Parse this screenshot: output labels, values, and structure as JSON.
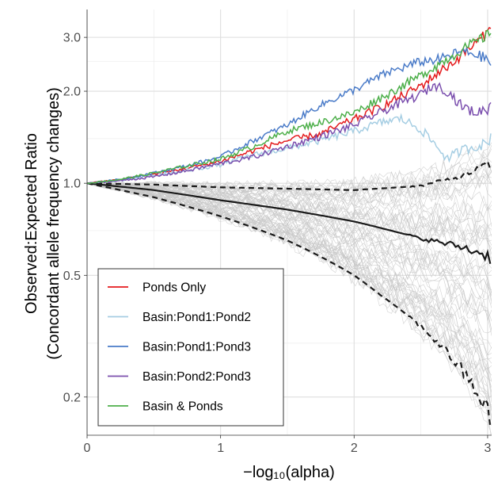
{
  "chart_data": {
    "type": "line",
    "xlabel": "−log₁₀(alpha)",
    "ylabel": [
      "Observed:Expected Ratio",
      "(Concordant allele frequency changes)"
    ],
    "y_scale": "log",
    "xlim": [
      0,
      3.03
    ],
    "ylim": [
      0.15,
      3.7
    ],
    "x_ticks": [
      0,
      1,
      2,
      3
    ],
    "x_tick_labels": [
      "0",
      "1",
      "2",
      "3"
    ],
    "y_ticks": [
      0.2,
      0.5,
      1.0,
      2.0,
      3.0
    ],
    "y_tick_labels": [
      "0.2",
      "0.5",
      "1.0",
      "2.0",
      "3.0"
    ],
    "y_minor_ticks": [
      0.3,
      0.7,
      1.4,
      2.5
    ],
    "x_minor_ticks": [
      0.5,
      1.5,
      2.5
    ],
    "grid": true,
    "legend_position": "bottom-left",
    "series": [
      {
        "name": "Ponds Only",
        "color": "#e41a1c",
        "x": [
          0,
          0.25,
          0.5,
          0.75,
          1.0,
          1.25,
          1.5,
          1.75,
          2.0,
          2.25,
          2.5,
          2.75,
          2.9,
          3.0,
          3.03
        ],
        "y": [
          1.0,
          1.03,
          1.07,
          1.12,
          1.18,
          1.28,
          1.38,
          1.45,
          1.62,
          1.82,
          2.08,
          2.5,
          2.85,
          3.1,
          3.4
        ]
      },
      {
        "name": "Basin:Pond1:Pond2",
        "color": "#a6cee3",
        "x": [
          0,
          0.25,
          0.5,
          0.75,
          1.0,
          1.25,
          1.5,
          1.75,
          2.0,
          2.2,
          2.35,
          2.5,
          2.6,
          2.7,
          2.8,
          2.9,
          3.0,
          3.03
        ],
        "y": [
          1.0,
          1.02,
          1.06,
          1.1,
          1.15,
          1.24,
          1.3,
          1.38,
          1.48,
          1.58,
          1.63,
          1.5,
          1.35,
          1.2,
          1.28,
          1.32,
          1.35,
          1.45
        ]
      },
      {
        "name": "Basin:Pond1:Pond3",
        "color": "#4a7bc8",
        "x": [
          0,
          0.25,
          0.5,
          0.75,
          1.0,
          1.25,
          1.5,
          1.75,
          2.0,
          2.25,
          2.5,
          2.65,
          2.8,
          2.9,
          3.0,
          3.03
        ],
        "y": [
          1.0,
          1.03,
          1.08,
          1.14,
          1.22,
          1.38,
          1.55,
          1.8,
          2.02,
          2.3,
          2.5,
          2.55,
          2.7,
          2.65,
          2.55,
          2.4
        ]
      },
      {
        "name": "Basin:Pond2:Pond3",
        "color": "#7b4fae",
        "x": [
          0,
          0.25,
          0.5,
          0.75,
          1.0,
          1.25,
          1.5,
          1.75,
          2.0,
          2.25,
          2.5,
          2.6,
          2.7,
          2.8,
          2.9,
          3.0,
          3.03
        ],
        "y": [
          1.0,
          1.02,
          1.05,
          1.1,
          1.16,
          1.22,
          1.32,
          1.42,
          1.55,
          1.75,
          1.95,
          2.1,
          2.0,
          1.8,
          1.7,
          1.75,
          1.82
        ]
      },
      {
        "name": "Basin & Ponds",
        "color": "#4daf4a",
        "x": [
          0,
          0.25,
          0.5,
          0.75,
          1.0,
          1.25,
          1.5,
          1.75,
          2.0,
          2.25,
          2.5,
          2.7,
          2.85,
          3.0,
          3.03
        ],
        "y": [
          1.0,
          1.03,
          1.08,
          1.14,
          1.2,
          1.32,
          1.48,
          1.58,
          1.7,
          1.95,
          2.25,
          2.55,
          2.8,
          3.05,
          3.15
        ]
      }
    ],
    "null_median": {
      "x": [
        0,
        0.5,
        1.0,
        1.5,
        2.0,
        2.5,
        2.8,
        3.0,
        3.03
      ],
      "y": [
        1.0,
        0.95,
        0.88,
        0.82,
        0.75,
        0.66,
        0.62,
        0.58,
        0.56
      ]
    },
    "null_upper": {
      "x": [
        0,
        0.5,
        1.0,
        1.5,
        2.0,
        2.5,
        2.8,
        3.0,
        3.03
      ],
      "y": [
        1.0,
        0.99,
        0.97,
        0.96,
        0.95,
        0.98,
        1.05,
        1.15,
        1.12
      ]
    },
    "null_lower": {
      "x": [
        0,
        0.5,
        1.0,
        1.5,
        2.0,
        2.2,
        2.5,
        2.7,
        2.85,
        3.0,
        3.03
      ],
      "y": [
        1.0,
        0.9,
        0.78,
        0.65,
        0.5,
        0.43,
        0.34,
        0.28,
        0.23,
        0.18,
        0.16
      ]
    }
  }
}
